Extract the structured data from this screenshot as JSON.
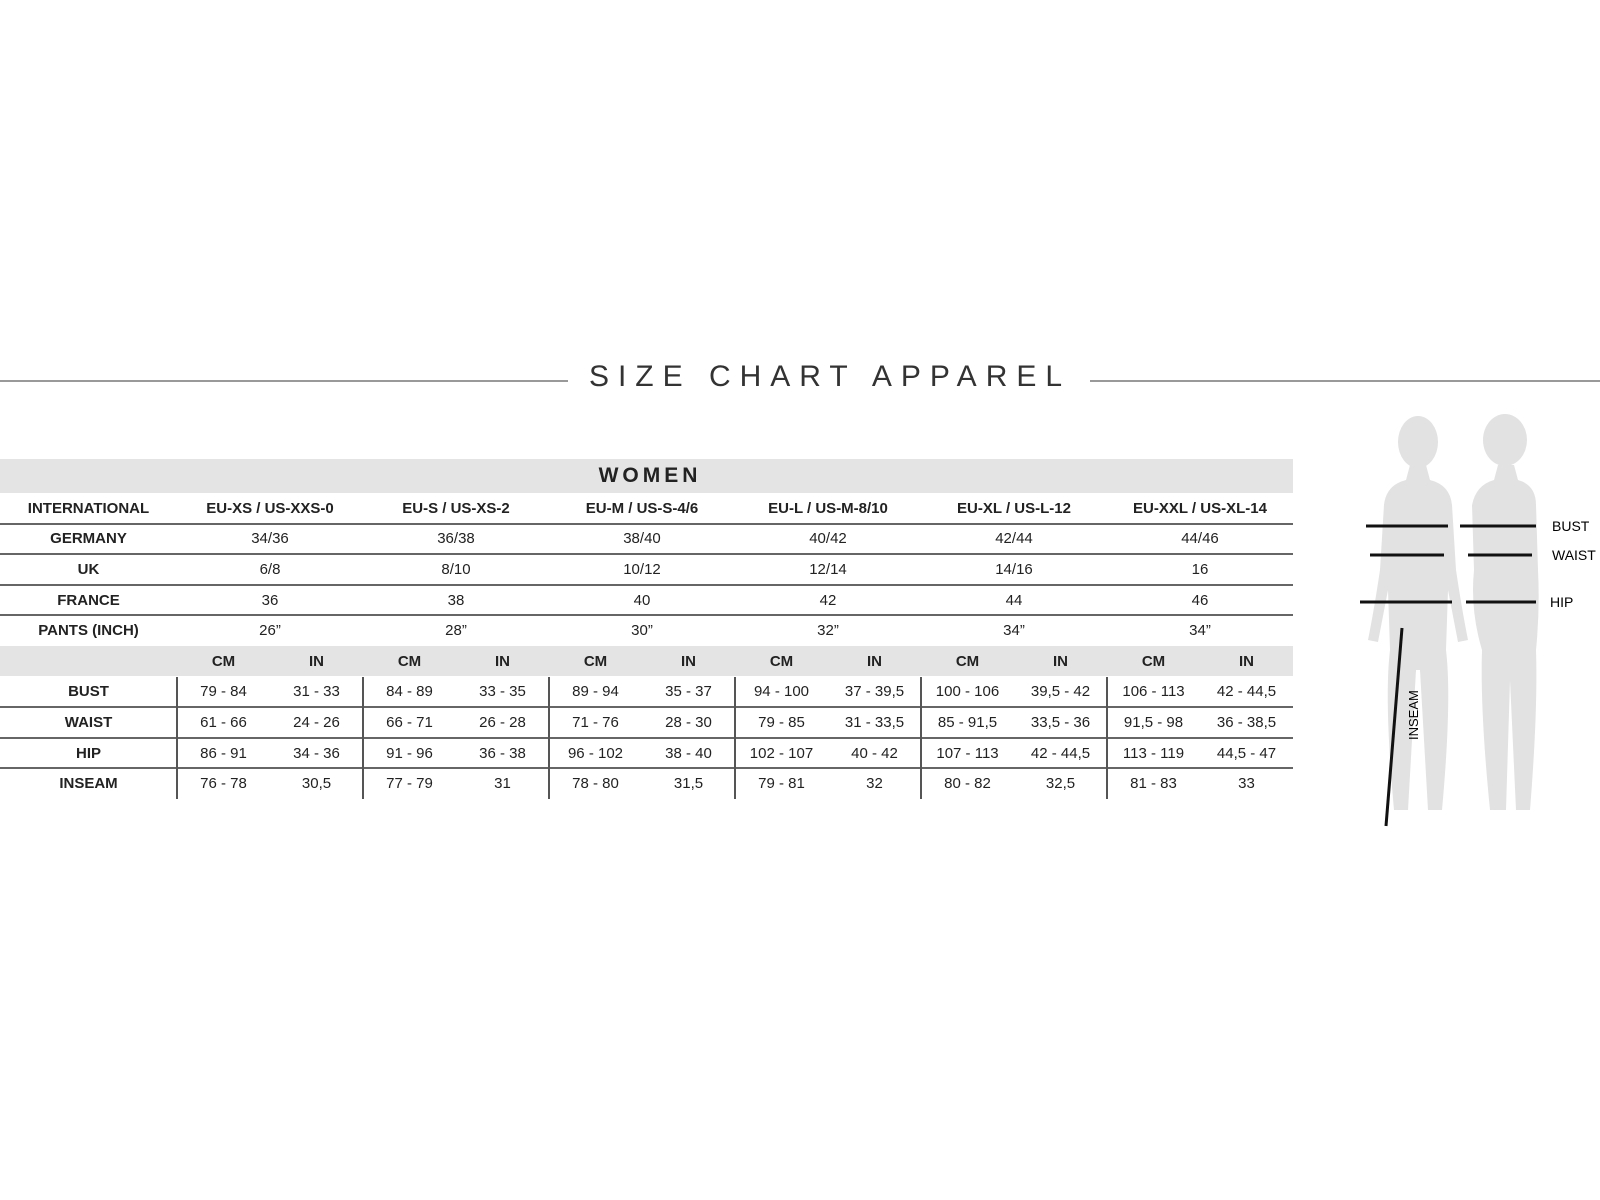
{
  "title": "SIZE CHART APPAREL",
  "table": {
    "section": "WOMEN",
    "header": [
      "INTERNATIONAL",
      "EU-XS / US-XXS-0",
      "EU-S / US-XS-2",
      "EU-M / US-S-4/6",
      "EU-L / US-M-8/10",
      "EU-XL / US-L-12",
      "EU-XXL / US-XL-14"
    ],
    "size_rows": [
      [
        "GERMANY",
        "34/36",
        "36/38",
        "38/40",
        "40/42",
        "42/44",
        "44/46"
      ],
      [
        "UK",
        "6/8",
        "8/10",
        "10/12",
        "12/14",
        "14/16",
        "16"
      ],
      [
        "FRANCE",
        "36",
        "38",
        "40",
        "42",
        "44",
        "46"
      ],
      [
        "PANTS (INCH)",
        "26”",
        "28”",
        "30”",
        "32”",
        "34”",
        "34”"
      ]
    ],
    "units": [
      "CM",
      "IN",
      "CM",
      "IN",
      "CM",
      "IN",
      "CM",
      "IN",
      "CM",
      "IN",
      "CM",
      "IN"
    ],
    "measure_rows": [
      [
        "BUST",
        "79 - 84",
        "31 - 33",
        "84 - 89",
        "33 - 35",
        "89 - 94",
        "35 - 37",
        "94 - 100",
        "37 - 39,5",
        "100 - 106",
        "39,5 - 42",
        "106 - 113",
        "42 - 44,5"
      ],
      [
        "WAIST",
        "61 - 66",
        "24 - 26",
        "66 - 71",
        "26 - 28",
        "71 - 76",
        "28 - 30",
        "79 - 85",
        "31 - 33,5",
        "85 - 91,5",
        "33,5 - 36",
        "91,5 - 98",
        "36 - 38,5"
      ],
      [
        "HIP",
        "86 - 91",
        "34 - 36",
        "91 - 96",
        "36 - 38",
        "96 - 102",
        "38 - 40",
        "102 - 107",
        "40 - 42",
        "107 - 113",
        "42 - 44,5",
        "113 - 119",
        "44,5 - 47"
      ],
      [
        "INSEAM",
        "76 - 78",
        "30,5",
        "77 - 79",
        "31",
        "78 - 80",
        "31,5",
        "79 - 81",
        "32",
        "80 - 82",
        "32,5",
        "81 - 83",
        "33"
      ]
    ]
  },
  "figure": {
    "labels": [
      "BUST",
      "WAIST",
      "HIP",
      "INSEAM"
    ]
  }
}
